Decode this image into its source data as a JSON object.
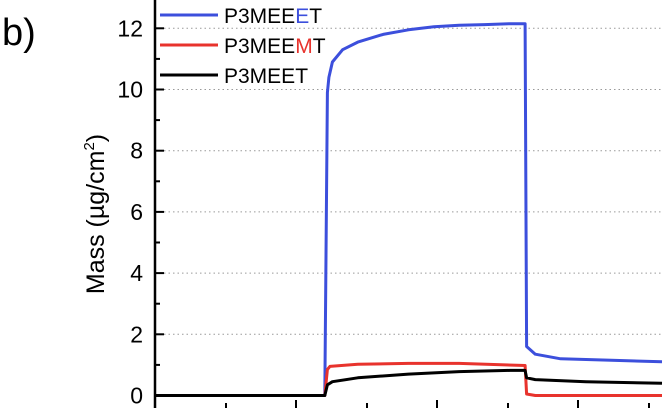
{
  "panel_label": "b)",
  "chart_data": {
    "type": "line",
    "ylabel": {
      "main": "Mass (µg/cm",
      "sup": "2",
      "tail": ")"
    },
    "ylim": [
      0,
      13
    ],
    "yticks": [
      0,
      2,
      4,
      6,
      8,
      10,
      12
    ],
    "grid": "horizontal-dotted",
    "legend_position": "top-left",
    "x_range": [
      0,
      100
    ],
    "series": [
      {
        "name": {
          "prefix": "P3MEE",
          "highlight": "E",
          "suffix": "T"
        },
        "color": "#3c4fdc",
        "highlight_color": "#3c4fdc",
        "x": [
          0,
          33.5,
          34,
          34.3,
          35,
          37,
          40,
          45,
          50,
          55,
          60,
          65,
          70,
          73,
          73.3,
          75,
          80,
          90,
          100
        ],
        "y": [
          0,
          0,
          9.9,
          10.4,
          10.9,
          11.3,
          11.55,
          11.8,
          11.95,
          12.05,
          12.1,
          12.12,
          12.15,
          12.15,
          1.6,
          1.35,
          1.2,
          1.15,
          1.1
        ]
      },
      {
        "name": {
          "prefix": "P3MEE",
          "highlight": "M",
          "suffix": "T"
        },
        "color": "#e8332d",
        "highlight_color": "#e8332d",
        "x": [
          0,
          33.5,
          34,
          34.5,
          40,
          50,
          60,
          73,
          73.3,
          75,
          100
        ],
        "y": [
          0,
          0,
          0.85,
          0.95,
          1.02,
          1.05,
          1.05,
          0.98,
          0.05,
          0,
          0
        ]
      },
      {
        "name": {
          "prefix": "P3MEET",
          "highlight": "",
          "suffix": ""
        },
        "color": "#000000",
        "highlight_color": "#000000",
        "x": [
          0,
          33.5,
          34,
          35,
          40,
          50,
          60,
          70,
          73,
          73.3,
          75,
          85,
          100
        ],
        "y": [
          0,
          0,
          0.35,
          0.45,
          0.58,
          0.7,
          0.78,
          0.82,
          0.82,
          0.58,
          0.52,
          0.45,
          0.4
        ]
      }
    ]
  }
}
